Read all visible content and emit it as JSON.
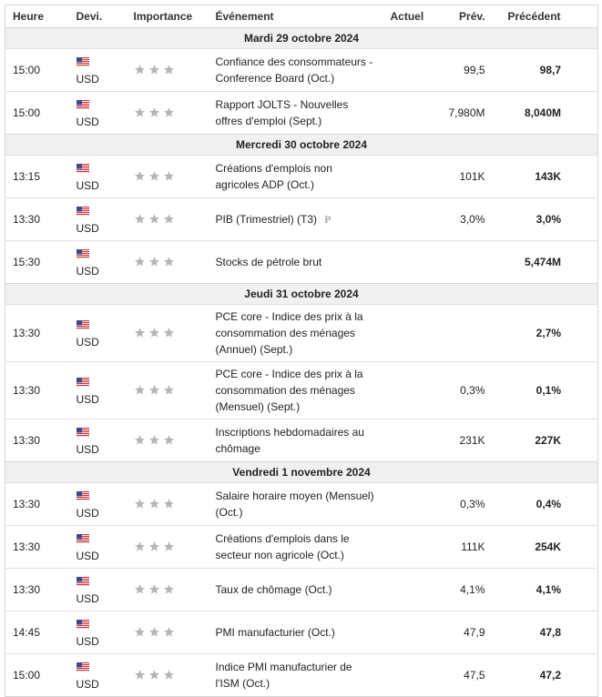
{
  "header": {
    "time": "Heure",
    "currency": "Devi.",
    "importance": "Importance",
    "event": "Événement",
    "actual": "Actuel",
    "forecast": "Prév.",
    "previous": "Précédent"
  },
  "days": [
    {
      "date": "Mardi 29 octobre 2024",
      "events": [
        {
          "time": "15:00",
          "currency": "USD",
          "event": "Confiance des consommateurs - Conference Board (Oct.)",
          "forecast": "99,5",
          "previous": "98,7"
        },
        {
          "time": "15:00",
          "currency": "USD",
          "event": "Rapport JOLTS - Nouvelles offres d'emploi (Sept.)",
          "forecast": "7,980M",
          "previous": "8,040M"
        }
      ]
    },
    {
      "date": "Mercredi 30 octobre 2024",
      "events": [
        {
          "time": "13:15",
          "currency": "USD",
          "event": "Créations d'emplois non agricoles ADP (Oct.)",
          "forecast": "101K",
          "previous": "143K"
        },
        {
          "time": "13:30",
          "currency": "USD",
          "event": "PIB (Trimestriel) (T3)",
          "badge": "P",
          "forecast": "3,0%",
          "previous": "3,0%"
        },
        {
          "time": "15:30",
          "currency": "USD",
          "event": "Stocks de pétrole brut",
          "previous": "5,474M"
        }
      ]
    },
    {
      "date": "Jeudi 31 octobre 2024",
      "events": [
        {
          "time": "13:30",
          "currency": "USD",
          "event": "PCE core - Indice des prix à la consommation des ménages (Annuel) (Sept.)",
          "previous": "2,7%"
        },
        {
          "time": "13:30",
          "currency": "USD",
          "event": "PCE core - Indice des prix à la consommation des ménages (Mensuel) (Sept.)",
          "forecast": "0,3%",
          "previous": "0,1%"
        },
        {
          "time": "13:30",
          "currency": "USD",
          "event": "Inscriptions hebdomadaires au chômage",
          "forecast": "231K",
          "previous": "227K"
        }
      ]
    },
    {
      "date": "Vendredi 1 novembre 2024",
      "events": [
        {
          "time": "13:30",
          "currency": "USD",
          "event": "Salaire horaire moyen (Mensuel) (Oct.)",
          "forecast": "0,3%",
          "previous": "0,4%"
        },
        {
          "time": "13:30",
          "currency": "USD",
          "event": "Créations d'emplois dans le secteur non agricole (Oct.)",
          "forecast": "111K",
          "previous": "254K"
        },
        {
          "time": "13:30",
          "currency": "USD",
          "event": "Taux de chômage (Oct.)",
          "forecast": "4,1%",
          "previous": "4,1%"
        },
        {
          "time": "14:45",
          "currency": "USD",
          "event": "PMI manufacturier (Oct.)",
          "forecast": "47,9",
          "previous": "47,8"
        },
        {
          "time": "15:00",
          "currency": "USD",
          "event": "Indice PMI manufacturier de l'ISM (Oct.)",
          "forecast": "47,5",
          "previous": "47,2"
        }
      ]
    }
  ]
}
